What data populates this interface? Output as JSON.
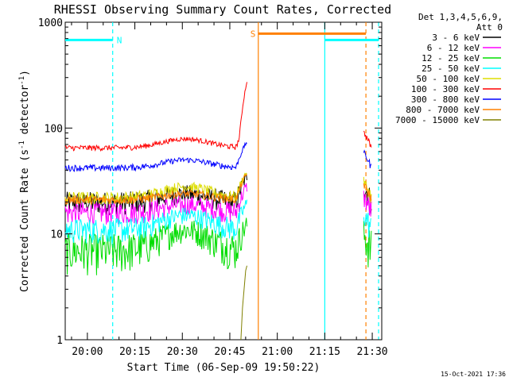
{
  "chart_data": {
    "type": "line",
    "title": "RHESSI Observing Summary Count Rates, Corrected",
    "xlabel": "Start Time (06-Sep-09 19:50:22)",
    "ylabel_main": "Corrected Count Rate (s",
    "ylabel_sup1": "-1",
    "ylabel_mid": " detector",
    "ylabel_sup2": "-1",
    "ylabel_end": ")",
    "yscale": "log",
    "ylim": [
      1,
      1000
    ],
    "xlim_minutes": [
      -7,
      93
    ],
    "x_tick_labels": [
      "20:00",
      "20:15",
      "20:30",
      "20:45",
      "21:00",
      "21:15",
      "21:30"
    ],
    "x_tick_minutes": [
      0,
      15,
      30,
      45,
      60,
      75,
      90
    ],
    "y_tick_labels": [
      "1",
      "10",
      "100",
      "1000"
    ],
    "y_tick_values": [
      1,
      10,
      100,
      1000
    ],
    "legend_header": [
      "Det 1,3,4,5,6,9,",
      "Att 0"
    ],
    "legend_position": "right",
    "timestamp": "15-Oct-2021 17:36",
    "series": [
      {
        "name": "3 - 6 keV",
        "color": "#000000",
        "base": 20,
        "amp": 4,
        "noise": 5
      },
      {
        "name": "6 - 12 keV",
        "color": "#ff00ff",
        "base": 16,
        "amp": 3,
        "noise": 4
      },
      {
        "name": "12 - 25 keV",
        "color": "#00dd00",
        "base": 7,
        "amp": 4,
        "noise": 3
      },
      {
        "name": "25 - 50 keV",
        "color": "#00ffff",
        "base": 11,
        "amp": 4,
        "noise": 3
      },
      {
        "name": "50 - 100 keV",
        "color": "#dddd00",
        "base": 22,
        "amp": 6,
        "noise": 3
      },
      {
        "name": "100 - 300 keV",
        "color": "#ff0000",
        "base": 65,
        "amp": 14,
        "noise": 4
      },
      {
        "name": "300 - 800 keV",
        "color": "#0000ff",
        "base": 42,
        "amp": 8,
        "noise": 3
      },
      {
        "name": "800 - 7000 keV",
        "color": "#ff8000",
        "base": 21,
        "amp": 3,
        "noise": 2
      },
      {
        "name": "7000 - 15000 keV",
        "color": "#808000",
        "base": 0,
        "amp": 0,
        "noise": 0
      }
    ],
    "flags": [
      {
        "label": "N",
        "color": "#00ffff",
        "start_min": -7,
        "end_min": 8,
        "level": 680
      },
      {
        "label": "",
        "color": "#00ffff",
        "start_min": 75,
        "end_min": 92,
        "level": 680
      },
      {
        "label": "S",
        "color": "#ff8000",
        "start_min": 54,
        "end_min": 88,
        "level": 780
      }
    ],
    "vlines": [
      {
        "minute": 8,
        "color": "#00ffff",
        "style": "dashed"
      },
      {
        "minute": 54,
        "color": "#ff8000",
        "style": "solid"
      },
      {
        "minute": 75,
        "color": "#00ffff",
        "style": "solid"
      },
      {
        "minute": 88,
        "color": "#ff8000",
        "style": "dashed"
      },
      {
        "minute": 92,
        "color": "#00ffff",
        "style": "dashed"
      }
    ],
    "data_gap_minutes": [
      50.5,
      87.3
    ]
  }
}
